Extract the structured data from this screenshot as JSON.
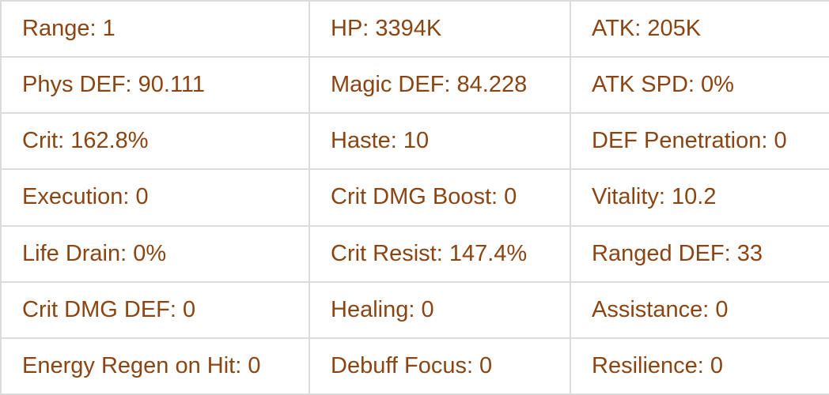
{
  "text_color": "#8b4513",
  "rows": [
    [
      "Range: 1",
      "HP: 3394K",
      "ATK: 205K"
    ],
    [
      "Phys DEF: 90.111",
      "Magic DEF: 84.228",
      "ATK SPD: 0%"
    ],
    [
      "Crit: 162.8%",
      "Haste: 10",
      "DEF Penetration: 0"
    ],
    [
      "Execution: 0",
      "Crit DMG Boost: 0",
      "Vitality: 10.2"
    ],
    [
      "Life Drain: 0%",
      "Crit Resist: 147.4%",
      "Ranged DEF: 33"
    ],
    [
      "Crit DMG DEF: 0",
      "Healing: 0",
      "Assistance: 0"
    ],
    [
      "Energy Regen on Hit: 0",
      "Debuff Focus: 0",
      "Resilience: 0"
    ]
  ]
}
